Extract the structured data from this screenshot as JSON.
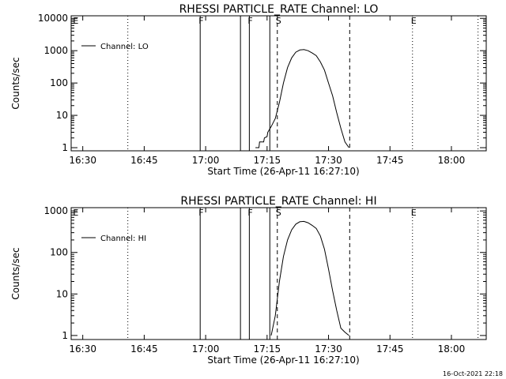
{
  "chart_data": [
    {
      "type": "line",
      "title": "RHESSI PARTICLE_RATE Channel: LO",
      "xlabel": "Start Time (26-Apr-11 16:27:10)",
      "ylabel": "Counts/sec",
      "yscale": "log",
      "ylim": [
        0.8,
        12000
      ],
      "xlim": [
        "16:27:10",
        "18:08:30"
      ],
      "x_ticks": [
        "16:30",
        "16:45",
        "17:00",
        "17:15",
        "17:30",
        "17:45",
        "18:00"
      ],
      "y_ticks": [
        "1",
        "10",
        "100",
        "1000",
        "10000"
      ],
      "legend": {
        "position": "top-left",
        "entries": [
          "Channel: LO"
        ]
      },
      "grid": false,
      "series": [
        {
          "name": "Channel: LO",
          "x": [
            "17:12:10",
            "17:13:00",
            "17:13:10",
            "17:14:10",
            "17:14:20",
            "17:15:00",
            "17:15:10",
            "17:16:00",
            "17:17:00",
            "17:18:00",
            "17:19:00",
            "17:20:00",
            "17:21:00",
            "17:22:00",
            "17:23:00",
            "17:24:00",
            "17:25:00",
            "17:26:00",
            "17:27:00",
            "17:28:00",
            "17:29:00",
            "17:30:00",
            "17:31:00",
            "17:32:00",
            "17:33:00",
            "17:34:00",
            "17:35:00"
          ],
          "y": [
            1.0,
            1.0,
            1.5,
            1.5,
            2.0,
            2.2,
            3.0,
            4.5,
            8.0,
            25,
            100,
            300,
            600,
            900,
            1050,
            1080,
            1000,
            850,
            700,
            450,
            250,
            100,
            40,
            12,
            4,
            1.5,
            1.0
          ]
        }
      ]
    },
    {
      "type": "line",
      "title": "RHESSI PARTICLE_RATE Channel: HI",
      "xlabel": "Start Time (26-Apr-11 16:27:10)",
      "ylabel": "Counts/sec",
      "yscale": "log",
      "ylim": [
        0.8,
        1200
      ],
      "xlim": [
        "16:27:10",
        "18:08:30"
      ],
      "x_ticks": [
        "16:30",
        "16:45",
        "17:00",
        "17:15",
        "17:30",
        "17:45",
        "18:00"
      ],
      "y_ticks": [
        "1",
        "10",
        "100",
        "1000"
      ],
      "legend": {
        "position": "top-left",
        "entries": [
          "Channel: HI"
        ]
      },
      "grid": false,
      "series": [
        {
          "name": "Channel: HI",
          "x": [
            "17:16:00",
            "17:17:00",
            "17:18:00",
            "17:19:00",
            "17:20:00",
            "17:21:00",
            "17:22:00",
            "17:23:00",
            "17:24:00",
            "17:25:00",
            "17:26:00",
            "17:27:00",
            "17:28:00",
            "17:29:00",
            "17:30:00",
            "17:31:00",
            "17:32:00",
            "17:33:00",
            "17:34:00",
            "17:35:00"
          ],
          "y": [
            1.0,
            3,
            20,
            80,
            200,
            350,
            480,
            550,
            560,
            520,
            450,
            380,
            250,
            120,
            40,
            12,
            4,
            1.5,
            1.2,
            1.0
          ]
        }
      ]
    }
  ],
  "flag_markers": [
    {
      "label": "E",
      "time": "16:28:00",
      "style": "none"
    },
    {
      "label": "",
      "time": "16:41:00",
      "style": "dotted"
    },
    {
      "label": "F",
      "time": "16:58:40",
      "style": "solid"
    },
    {
      "label": "",
      "time": "17:08:30",
      "style": "solid"
    },
    {
      "label": "F",
      "time": "17:10:40",
      "style": "solid"
    },
    {
      "label": "",
      "time": "17:15:40",
      "style": "solid"
    },
    {
      "label": "S",
      "time": "17:17:30",
      "style": "dashed"
    },
    {
      "label": "",
      "time": "17:35:10",
      "style": "dashed"
    },
    {
      "label": "E",
      "time": "17:50:30",
      "style": "dotted"
    },
    {
      "label": "",
      "time": "18:06:30",
      "style": "dotted"
    }
  ],
  "timestamp": "16-Oct-2021 22:18"
}
